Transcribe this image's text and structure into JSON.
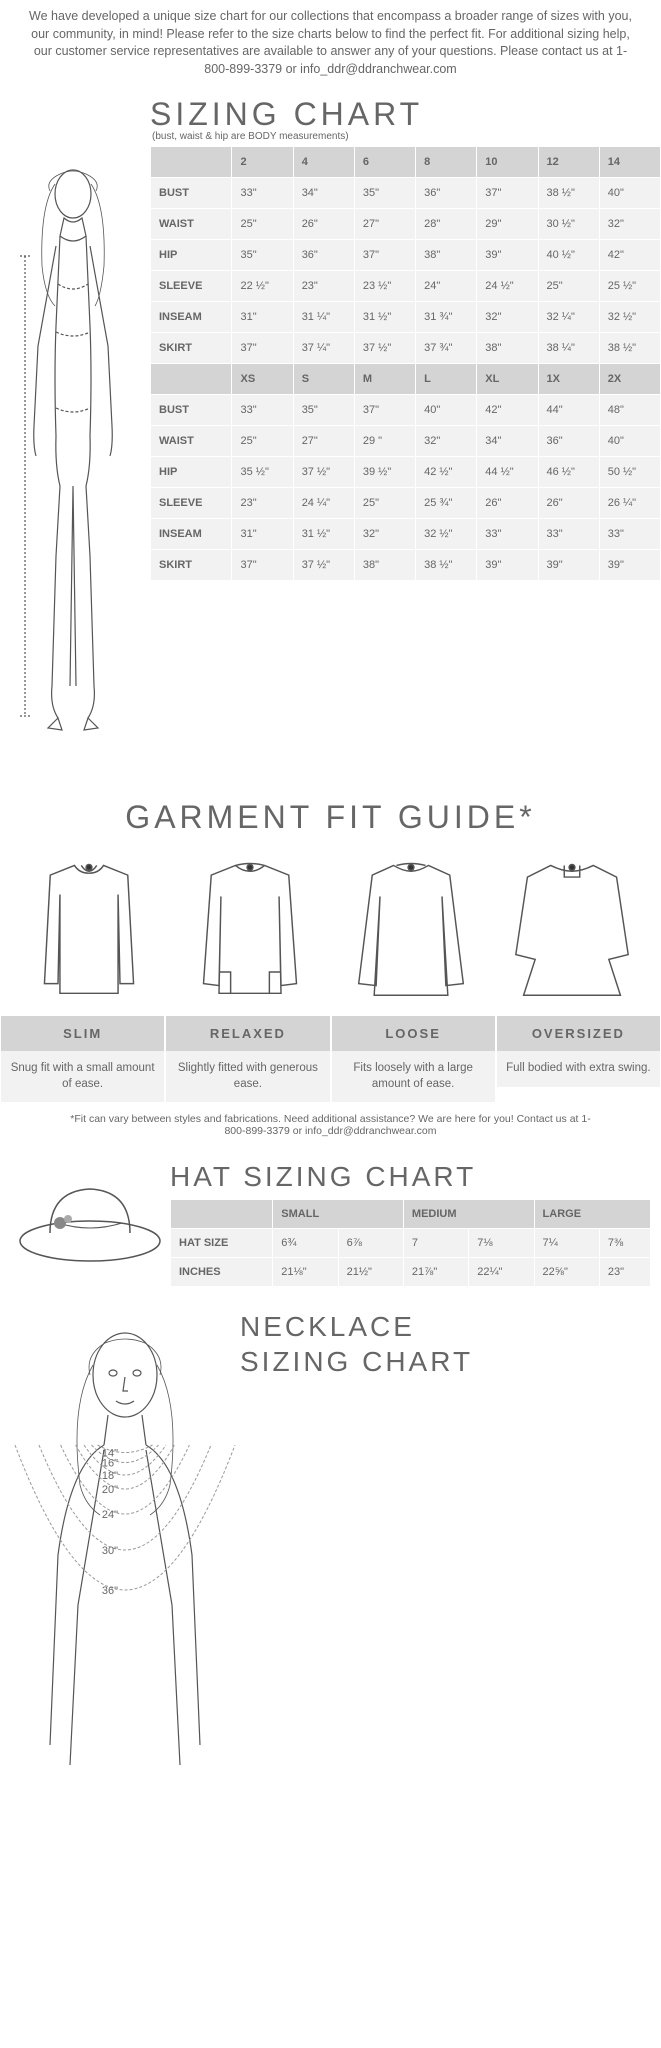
{
  "colors": {
    "text": "#666666",
    "header_bg": "#d4d4d4",
    "cell_bg": "#f2f2f2",
    "border": "#ffffff",
    "stroke": "#555555"
  },
  "intro_text": "We have developed a unique size chart for our collections that encompass a broader range of sizes with you, our community, in mind! Please refer to the size charts below to find the perfect fit. For additional sizing help, our customer service representatives are available to answer any of your questions. Please contact us at 1-800-899-3379 or info_ddr@ddranchwear.com",
  "sizing": {
    "title": "SIZING CHART",
    "subnote": "(bust, waist & hip are BODY measurements)",
    "numeric": {
      "headers": [
        "2",
        "4",
        "6",
        "8",
        "10",
        "12",
        "14"
      ],
      "rows": [
        {
          "label": "BUST",
          "cells": [
            "33\"",
            "34\"",
            "35\"",
            "36\"",
            "37\"",
            "38 ½\"",
            "40\""
          ]
        },
        {
          "label": "WAIST",
          "cells": [
            "25\"",
            "26\"",
            "27\"",
            "28\"",
            "29\"",
            "30 ½\"",
            "32\""
          ]
        },
        {
          "label": "HIP",
          "cells": [
            "35\"",
            "36\"",
            "37\"",
            "38\"",
            "39\"",
            "40 ½\"",
            "42\""
          ]
        },
        {
          "label": "SLEEVE",
          "cells": [
            "22 ½\"",
            "23\"",
            "23 ½\"",
            "24\"",
            "24 ½\"",
            "25\"",
            "25 ½\""
          ]
        },
        {
          "label": "INSEAM",
          "cells": [
            "31\"",
            "31 ¼\"",
            "31 ½\"",
            "31 ¾\"",
            "32\"",
            "32 ¼\"",
            "32 ½\""
          ]
        },
        {
          "label": "SKIRT",
          "cells": [
            "37\"",
            "37 ¼\"",
            "37 ½\"",
            "37 ¾\"",
            "38\"",
            "38 ¼\"",
            "38 ½\""
          ]
        }
      ]
    },
    "letter": {
      "headers": [
        "XS",
        "S",
        "M",
        "L",
        "XL",
        "1X",
        "2X"
      ],
      "rows": [
        {
          "label": "BUST",
          "cells": [
            "33\"",
            "35\"",
            "37\"",
            "40\"",
            "42\"",
            "44\"",
            "48\""
          ]
        },
        {
          "label": "WAIST",
          "cells": [
            "25\"",
            "27\"",
            "29 \"",
            "32\"",
            "34\"",
            "36\"",
            "40\""
          ]
        },
        {
          "label": "HIP",
          "cells": [
            "35 ½\"",
            "37 ½\"",
            "39 ½\"",
            "42 ½\"",
            "44 ½\"",
            "46 ½\"",
            "50 ½\""
          ]
        },
        {
          "label": "SLEEVE",
          "cells": [
            "23\"",
            "24 ¼\"",
            "25\"",
            "25 ¾\"",
            "26\"",
            "26\"",
            "26 ¼\""
          ]
        },
        {
          "label": "INSEAM",
          "cells": [
            "31\"",
            "31 ½\"",
            "32\"",
            "32 ½\"",
            "33\"",
            "33\"",
            "33\""
          ]
        },
        {
          "label": "SKIRT",
          "cells": [
            "37\"",
            "37 ½\"",
            "38\"",
            "38 ½\"",
            "39\"",
            "39\"",
            "39\""
          ]
        }
      ]
    }
  },
  "fit_guide": {
    "title": "GARMENT FIT GUIDE*",
    "fits": [
      {
        "name": "SLIM",
        "desc": "Snug fit with a small amount of ease."
      },
      {
        "name": "RELAXED",
        "desc": "Slightly fitted with generous ease."
      },
      {
        "name": "LOOSE",
        "desc": "Fits loosely with a large amount of ease."
      },
      {
        "name": "OVERSIZED",
        "desc": "Full bodied with extra swing."
      }
    ],
    "footer": "*Fit can vary between styles and fabrications. Need additional assistance? We are here for you! Contact us at 1-800-899-3379 or info_ddr@ddranchwear.com"
  },
  "hat": {
    "title": "HAT SIZING CHART",
    "headers": [
      "SMALL",
      "",
      "MEDIUM",
      "",
      "LARGE",
      ""
    ],
    "rows": [
      {
        "label": "HAT SIZE",
        "cells": [
          "6¾",
          "6⅞",
          "7",
          "7⅛",
          "7¼",
          "7⅜"
        ]
      },
      {
        "label": "INCHES",
        "cells": [
          "21⅛\"",
          "21½\"",
          "21⅞\"",
          "22¼\"",
          "22⅝\"",
          "23\""
        ]
      }
    ]
  },
  "necklace": {
    "title_l1": "NECKLACE",
    "title_l2": "SIZING CHART",
    "lengths": [
      "14\"",
      "16\"",
      "18\"",
      "20\"",
      "24\"",
      "30\"",
      "36\""
    ]
  }
}
